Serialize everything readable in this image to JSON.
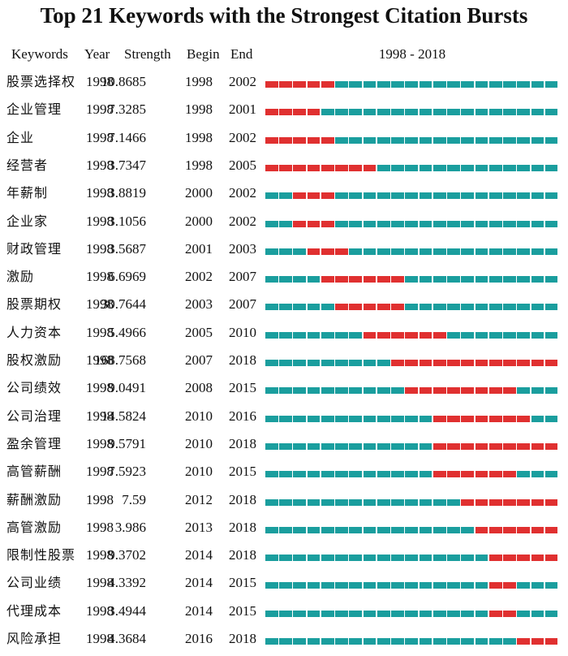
{
  "title": "Top 21 Keywords with the Strongest Citation Bursts",
  "headers": {
    "keywords": "Keywords",
    "year": "Year",
    "strength": "Strength",
    "begin": "Begin",
    "end": "End",
    "range": "1998 - 2018"
  },
  "colors": {
    "normal": "#1a9e9e",
    "burst": "#e03030"
  },
  "chart_data": {
    "type": "table",
    "timeline_start": 1998,
    "timeline_end": 2018,
    "rows": [
      {
        "keyword": "股票选择权",
        "year": "1998",
        "strength": "10.8685",
        "begin": "1998",
        "end": "2002"
      },
      {
        "keyword": "企业管理",
        "year": "1998",
        "strength": "7.3285",
        "begin": "1998",
        "end": "2001"
      },
      {
        "keyword": "企业",
        "year": "1998",
        "strength": "7.1466",
        "begin": "1998",
        "end": "2002"
      },
      {
        "keyword": "经营者",
        "year": "1998",
        "strength": "3.7347",
        "begin": "1998",
        "end": "2005"
      },
      {
        "keyword": "年薪制",
        "year": "1998",
        "strength": "3.8819",
        "begin": "2000",
        "end": "2002"
      },
      {
        "keyword": "企业家",
        "year": "1998",
        "strength": "3.1056",
        "begin": "2000",
        "end": "2002"
      },
      {
        "keyword": "财政管理",
        "year": "1998",
        "strength": "3.5687",
        "begin": "2001",
        "end": "2003"
      },
      {
        "keyword": "激励",
        "year": "1998",
        "strength": "6.6969",
        "begin": "2002",
        "end": "2007"
      },
      {
        "keyword": "股票期权",
        "year": "1998",
        "strength": "30.7644",
        "begin": "2003",
        "end": "2007"
      },
      {
        "keyword": "人力资本",
        "year": "1998",
        "strength": "5.4966",
        "begin": "2005",
        "end": "2010"
      },
      {
        "keyword": "股权激励",
        "year": "1998",
        "strength": "168.7568",
        "begin": "2007",
        "end": "2018"
      },
      {
        "keyword": "公司绩效",
        "year": "1998",
        "strength": "9.0491",
        "begin": "2008",
        "end": "2015"
      },
      {
        "keyword": "公司治理",
        "year": "1998",
        "strength": "14.5824",
        "begin": "2010",
        "end": "2016"
      },
      {
        "keyword": "盈余管理",
        "year": "1998",
        "strength": "9.5791",
        "begin": "2010",
        "end": "2018"
      },
      {
        "keyword": "高管薪酬",
        "year": "1998",
        "strength": "7.5923",
        "begin": "2010",
        "end": "2015"
      },
      {
        "keyword": "薪酬激励",
        "year": "1998",
        "strength": "7.59",
        "begin": "2012",
        "end": "2018"
      },
      {
        "keyword": "高管激励",
        "year": "1998",
        "strength": "3.986",
        "begin": "2013",
        "end": "2018"
      },
      {
        "keyword": "限制性股票",
        "year": "1998",
        "strength": "9.3702",
        "begin": "2014",
        "end": "2018"
      },
      {
        "keyword": "公司业绩",
        "year": "1998",
        "strength": "4.3392",
        "begin": "2014",
        "end": "2015"
      },
      {
        "keyword": "代理成本",
        "year": "1998",
        "strength": "3.4944",
        "begin": "2014",
        "end": "2015"
      },
      {
        "keyword": "风险承担",
        "year": "1998",
        "strength": "4.3684",
        "begin": "2016",
        "end": "2018"
      }
    ]
  }
}
